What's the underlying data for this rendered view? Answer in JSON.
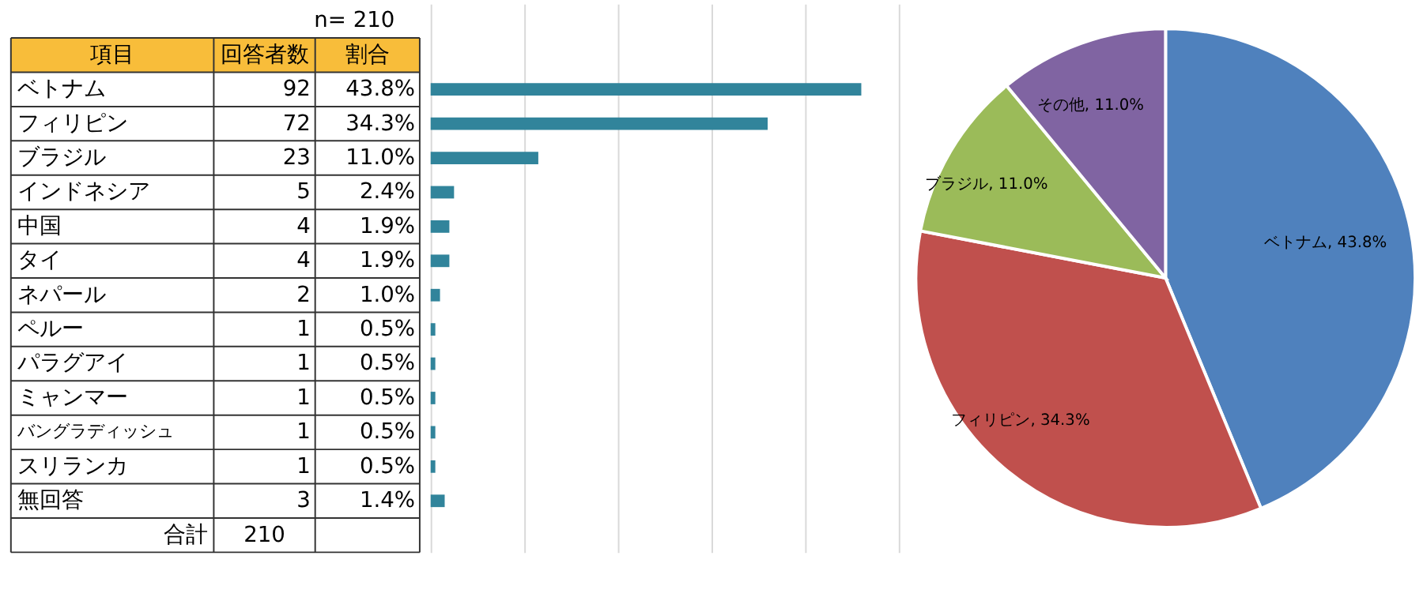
{
  "chart_data": [
    {
      "type": "bar",
      "orientation": "horizontal",
      "categories": [
        "ベトナム",
        "フィリピン",
        "ブラジル",
        "インドネシア",
        "中国",
        "タイ",
        "ネパール",
        "ペルー",
        "パラグアイ",
        "ミャンマー",
        "バングラディッシュ",
        "スリランカ",
        "無回答"
      ],
      "values": [
        92,
        72,
        23,
        5,
        4,
        4,
        2,
        1,
        1,
        1,
        1,
        1,
        3
      ],
      "color": "#31849b",
      "grid": "x",
      "data_labels": true,
      "annotations": [
        "n= 210",
        "項目",
        "回答者数",
        "割合",
        "合計",
        "210",
        "43.8%",
        "34.3%",
        "11.0%",
        "2.4%",
        "1.9%",
        "1.9%",
        "1.0%",
        "0.5%",
        "0.5%",
        "0.5%",
        "0.5%",
        "0.5%",
        "1.4%"
      ]
    },
    {
      "type": "pie",
      "categories": [
        "ベトナム",
        "フィリピン",
        "ブラジル",
        "その他"
      ],
      "values": [
        43.8,
        34.3,
        11.0,
        11.0
      ],
      "colors": [
        "#4f81bd",
        "#c0504d",
        "#9bbb59",
        "#8064a2"
      ],
      "value_labels": [
        ", 43.8%",
        ", 34.3%",
        ", 11.0%",
        ", 11.0%"
      ]
    }
  ]
}
